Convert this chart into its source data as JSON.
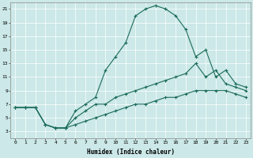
{
  "xlabel": "Humidex (Indice chaleur)",
  "ylabel": "",
  "xlim": [
    -0.5,
    23.5
  ],
  "ylim": [
    2,
    22
  ],
  "xticks": [
    0,
    1,
    2,
    3,
    4,
    5,
    6,
    7,
    8,
    9,
    10,
    11,
    12,
    13,
    14,
    15,
    16,
    17,
    18,
    19,
    20,
    21,
    22,
    23
  ],
  "yticks": [
    3,
    5,
    7,
    9,
    11,
    13,
    15,
    17,
    19,
    21
  ],
  "bg_color": "#cce8e8",
  "line_color": "#1a6b5a",
  "line1_x": [
    0,
    1,
    2,
    3,
    4,
    5,
    6,
    7,
    8,
    9,
    10,
    11,
    12,
    13,
    14,
    15,
    16,
    17,
    18,
    19,
    20,
    21,
    22,
    23
  ],
  "line1_y": [
    6.5,
    6.5,
    6.5,
    4,
    3.5,
    3.5,
    6,
    7,
    8,
    12,
    14,
    16,
    20,
    21,
    21.5,
    21,
    20,
    18,
    14,
    15,
    11,
    12,
    10,
    9.5
  ],
  "line2_x": [
    0,
    1,
    2,
    3,
    4,
    5,
    6,
    7,
    8,
    9,
    10,
    11,
    12,
    13,
    14,
    15,
    16,
    17,
    18,
    19,
    20,
    21,
    22,
    23
  ],
  "line2_y": [
    6.5,
    6.5,
    6.5,
    4,
    3.5,
    3.5,
    5,
    6,
    7,
    7,
    8,
    8.5,
    9,
    9.5,
    10,
    10.5,
    11,
    11.5,
    13,
    11,
    12,
    10,
    9.5,
    9
  ],
  "line3_x": [
    0,
    1,
    2,
    3,
    4,
    5,
    6,
    7,
    8,
    9,
    10,
    11,
    12,
    13,
    14,
    15,
    16,
    17,
    18,
    19,
    20,
    21,
    22,
    23
  ],
  "line3_y": [
    6.5,
    6.5,
    6.5,
    4,
    3.5,
    3.5,
    4,
    4.5,
    5,
    5.5,
    6,
    6.5,
    7,
    7,
    7.5,
    8,
    8,
    8.5,
    9,
    9,
    9,
    9,
    8.5,
    8
  ]
}
